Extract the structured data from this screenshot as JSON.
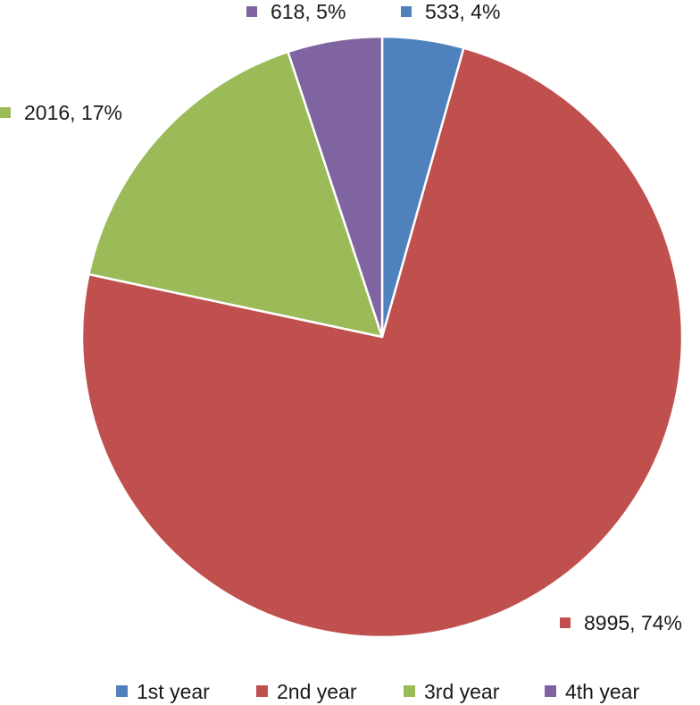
{
  "chart_data": {
    "type": "pie",
    "categories": [
      "1st year",
      "2nd year",
      "3rd year",
      "4th year"
    ],
    "values": [
      533,
      8995,
      2016,
      618
    ],
    "percentages": [
      "4%",
      "74%",
      "17%",
      "5%"
    ],
    "data_labels": [
      "533, 4%",
      "8995, 74%",
      "2016, 17%",
      "618, 5%"
    ],
    "colors": [
      "#4F81BD",
      "#C0504D",
      "#9BBB59",
      "#8064A2"
    ],
    "start_angle_deg": 0,
    "direction": "clockwise",
    "legend": {
      "position": "bottom",
      "entries": [
        "1st year",
        "2nd year",
        "3rd year",
        "4th year"
      ]
    },
    "title": ""
  }
}
